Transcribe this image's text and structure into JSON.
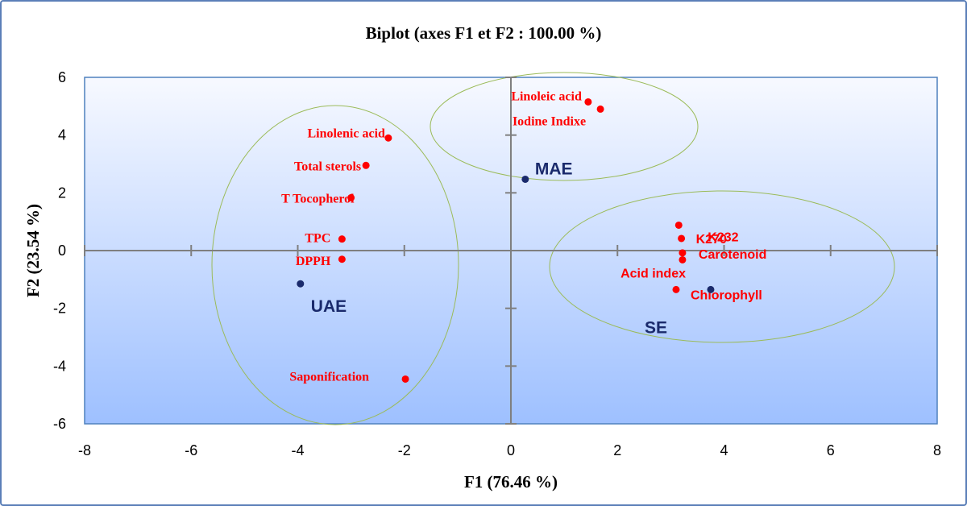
{
  "chart_data": {
    "type": "scatter",
    "title": "Biplot (axes F1 et F2 : 100.00 %)",
    "xlabel": "F1 (76.46 %)",
    "ylabel": "F2 (23.54 %)",
    "xlim": [
      -8,
      8
    ],
    "ylim": [
      -6,
      6
    ],
    "x_ticks": [
      "-8",
      "-6",
      "-4",
      "-2",
      "0",
      "2",
      "4",
      "6",
      "8"
    ],
    "y_ticks": [
      "6",
      "4",
      "2",
      "0",
      "-2",
      "-4",
      "-6"
    ],
    "grid": false,
    "variables": [
      {
        "label": "Linoleic acid",
        "x": 1.45,
        "y": 5.15
      },
      {
        "label": "Iodine Indixe",
        "x": 1.68,
        "y": 4.9
      },
      {
        "label": "Linolenic acid",
        "x": -2.3,
        "y": 3.9
      },
      {
        "label": "Total sterols",
        "x": -2.72,
        "y": 2.95
      },
      {
        "label": "T Tocopherol",
        "x": -3.0,
        "y": 1.83
      },
      {
        "label": "TPC",
        "x": -3.17,
        "y": 0.4
      },
      {
        "label": "DPPH",
        "x": -3.17,
        "y": -0.3
      },
      {
        "label": "Saponification",
        "x": -1.98,
        "y": -4.45
      },
      {
        "label": "K232",
        "x": 3.15,
        "y": 0.88
      },
      {
        "label": "K270",
        "x": 3.2,
        "y": 0.42
      },
      {
        "label": "Carotenoid",
        "x": 3.22,
        "y": -0.08
      },
      {
        "label": "",
        "x": 3.22,
        "y": -0.32
      },
      {
        "label": "Acid index",
        "x": 3.1,
        "y": -1.35
      },
      {
        "label": "Chlorophyll",
        "x": 3.1,
        "y": -1.35
      }
    ],
    "observations": [
      {
        "label": "MAE",
        "x": 0.27,
        "y": 2.47
      },
      {
        "label": "UAE",
        "x": -3.95,
        "y": -1.15
      },
      {
        "label": "SE",
        "x": 3.75,
        "y": -1.35
      }
    ],
    "colors": {
      "variables": "#ff0000",
      "observations": "#1a2a6c",
      "ellipses": "#9bbb59",
      "plot_background_top": "#f7f9ff",
      "plot_background_bottom": "#9ec0ff",
      "axes": "#7f7f7f",
      "frame": "#5b7fb8"
    }
  }
}
